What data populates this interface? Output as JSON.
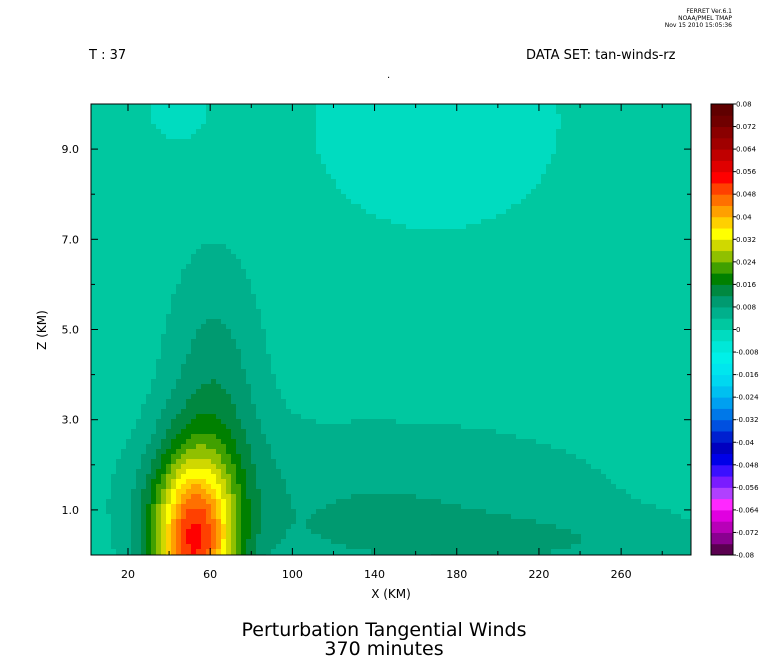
{
  "header": {
    "time_label": "T : 37",
    "dataset_label": "DATA SET: tan-winds-rz",
    "stamp_lines": [
      "FERRET Ver.6.1",
      "NOAA/PMEL TMAP",
      "Nov 15 2010 15:05:36"
    ],
    "dot": "."
  },
  "caption": {
    "line1": "Perturbation Tangential Winds",
    "line2": "370 minutes"
  },
  "chart_data": {
    "type": "heatmap",
    "title": "Perturbation Tangential Winds",
    "subtitle": "370 minutes",
    "xlabel": "X (KM)",
    "ylabel": "Z (KM)",
    "xlim": [
      2,
      294
    ],
    "ylim": [
      0,
      10
    ],
    "x_ticks": [
      20,
      60,
      100,
      140,
      180,
      220,
      260
    ],
    "y_ticks": [
      1.0,
      3.0,
      5.0,
      7.0,
      9.0
    ],
    "y_tick_labels": [
      "1.0",
      "3.0",
      "5.0",
      "7.0",
      "9.0"
    ],
    "grid": false,
    "colorbar": {
      "min": -0.08,
      "max": 0.08,
      "step": 0.004,
      "labels": [
        "-0.08",
        "-0.072",
        "-0.064",
        "-0.056",
        "-0.048",
        "-0.04",
        "-0.032",
        "-0.024",
        "-0.016",
        "-0.008",
        "0",
        "0.008",
        "0.016",
        "0.024",
        "0.032",
        "0.04",
        "0.048",
        "0.056",
        "0.064",
        "0.072",
        "0.08"
      ],
      "label_values": [
        -0.08,
        -0.072,
        -0.064,
        -0.056,
        -0.048,
        -0.04,
        -0.032,
        -0.024,
        -0.016,
        -0.008,
        0,
        0.008,
        0.016,
        0.024,
        0.032,
        0.04,
        0.048,
        0.056,
        0.064,
        0.072,
        0.08
      ],
      "colors": [
        "#5a0050",
        "#8a0090",
        "#b800b8",
        "#e000e0",
        "#ff28ff",
        "#b040ff",
        "#7a1cff",
        "#3a10ff",
        "#0000e8",
        "#0000c0",
        "#0020d0",
        "#0050e0",
        "#0078e8",
        "#00a0f0",
        "#00c0f0",
        "#00d8f0",
        "#00e6ee",
        "#00f0e8",
        "#00e8d8",
        "#00dcc0",
        "#00c8a0",
        "#00b08c",
        "#009a70",
        "#008840",
        "#008000",
        "#40a000",
        "#90c000",
        "#d0d800",
        "#ffff00",
        "#ffd000",
        "#ffa000",
        "#ff7000",
        "#ff4000",
        "#ff0000",
        "#e00000",
        "#c00000",
        "#a00000",
        "#8a0000",
        "#700000",
        "#600000"
      ]
    },
    "field_blobs": [
      {
        "x": 52,
        "z": 0.25,
        "sx": 20,
        "sz": 1.9,
        "amp": 0.0457
      },
      {
        "x": 62,
        "z": 3.4,
        "sx": 24,
        "sz": 3.2,
        "amp": 0.0094
      },
      {
        "x": 140,
        "z": 1.3,
        "sx": 125,
        "sz": 1.8,
        "amp": 0.0066
      },
      {
        "x": 215,
        "z": 0.25,
        "sx": 110,
        "sz": 0.7,
        "amp": 0.0045
      },
      {
        "x": 170,
        "z": 9.6,
        "sx": 50,
        "sz": 2.0,
        "amp": -0.005
      },
      {
        "x": 45,
        "z": 9.9,
        "sx": 14,
        "sz": 0.8,
        "amp": -0.0032
      }
    ],
    "field_offset": 0.0012
  }
}
